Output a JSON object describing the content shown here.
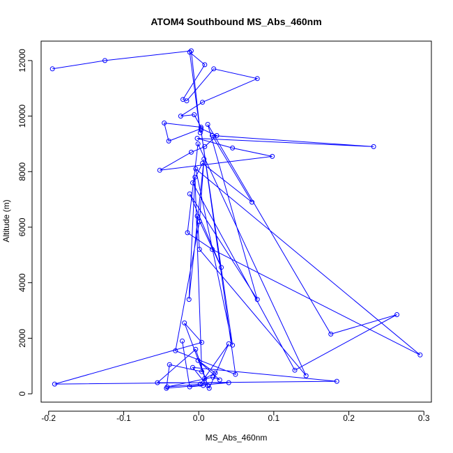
{
  "chart_data": {
    "type": "line",
    "title": "ATOM4 Southbound MS_Abs_460nm",
    "xlabel": "MS_Abs_460nm",
    "ylabel": "Altitude (m)",
    "xlim": [
      -0.21,
      0.31
    ],
    "ylim": [
      -300,
      12700
    ],
    "xticks": [
      -0.2,
      -0.1,
      0.0,
      0.1,
      0.2,
      0.3
    ],
    "xtick_labels": [
      "-0.2",
      "-0.1",
      "0.0",
      "0.1",
      "0.2",
      "0.3"
    ],
    "yticks": [
      0,
      2000,
      4000,
      6000,
      8000,
      10000,
      12000
    ],
    "ytick_labels": [
      "0",
      "2000",
      "4000",
      "6000",
      "8000",
      "10000",
      "12000"
    ],
    "grid": false,
    "series": [
      {
        "color": "#0000ff",
        "marker": "open-circle",
        "x": [
          -0.195,
          -0.125,
          -0.01,
          0.002,
          -0.012,
          0.008,
          -0.021,
          -0.016,
          0.02,
          0.078,
          0.005,
          -0.024,
          -0.006,
          0.003,
          -0.046,
          -0.04,
          0.003,
          0.024,
          0.008,
          -0.01,
          -0.052,
          0.098,
          0.045,
          -0.002,
          0.233,
          0.018,
          0.071,
          0.005,
          -0.008,
          0.128,
          0.264,
          0.176,
          0.012,
          0.078,
          -0.012,
          0.03,
          -0.002,
          0.001,
          0.143,
          -0.001,
          -0.015,
          0.018,
          0.295,
          -0.004,
          0.045,
          0.003,
          0.049,
          -0.031,
          0.001,
          0.007,
          -0.013,
          -0.005,
          0.004,
          -0.039,
          -0.043,
          0.04,
          -0.055,
          -0.004,
          0.012,
          -0.019,
          0.004,
          -0.192,
          0.184,
          -0.008,
          0.014,
          0.04,
          0.002,
          -0.042,
          0.019,
          0.028,
          -0.001,
          0.022,
          0.008,
          0.006,
          -0.012,
          -0.022
        ],
        "y": [
          11700,
          12000,
          12350,
          9400,
          12300,
          11850,
          10600,
          10550,
          11700,
          11350,
          10500,
          10000,
          10050,
          9600,
          9750,
          9100,
          9550,
          9300,
          8900,
          8700,
          8050,
          8550,
          8850,
          9200,
          8900,
          9300,
          6900,
          8300,
          7600,
          850,
          2850,
          2150,
          9700,
          3400,
          7200,
          4550,
          6400,
          5200,
          650,
          9000,
          5800,
          5200,
          1400,
          8100,
          1750,
          9500,
          700,
          1550,
          6200,
          8450,
          3400,
          7800,
          800,
          1050,
          200,
          400,
          400,
          1600,
          300,
          2550,
          1850,
          350,
          450,
          950,
          200,
          1800,
          350,
          250,
          600,
          500,
          1200,
          750,
          550,
          300,
          250,
          1900
        ]
      }
    ]
  }
}
